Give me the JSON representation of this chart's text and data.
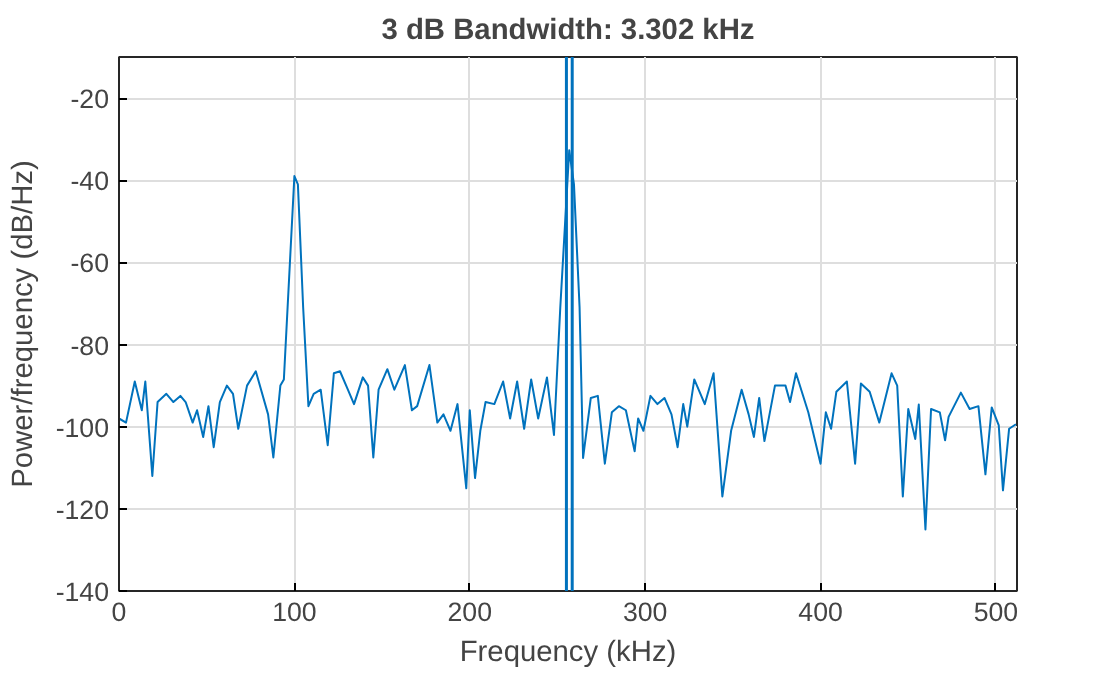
{
  "chart_data": {
    "type": "line",
    "title": "3 dB Bandwidth: 3.302 kHz",
    "xlabel": "Frequency (kHz)",
    "ylabel": "Power/frequency (dB/Hz)",
    "xlim": [
      0,
      512
    ],
    "ylim": [
      -140,
      -10
    ],
    "xticks": [
      0,
      100,
      200,
      300,
      400,
      500
    ],
    "yticks": [
      -140,
      -120,
      -100,
      -80,
      -60,
      -40,
      -20
    ],
    "grid": true,
    "line_style": "solid",
    "marker": "none",
    "series": [
      {
        "color": "#0072bd",
        "x": [
          0,
          4,
          9,
          13,
          15,
          19,
          22,
          27,
          31,
          35,
          38,
          42,
          44.5,
          48,
          51,
          54,
          57.5,
          61.5,
          65,
          68,
          73,
          78,
          85,
          88,
          92,
          94,
          100,
          102,
          105,
          108,
          111,
          115,
          119,
          122.5,
          126,
          130.5,
          134,
          139,
          142,
          145,
          148,
          153,
          157,
          163,
          167,
          170,
          177,
          181.5,
          185,
          189,
          193,
          198,
          200,
          203,
          206,
          209,
          214,
          219,
          223,
          227,
          231,
          235,
          239,
          244,
          248,
          251.6,
          256.7,
          259.4,
          262.6,
          264.6,
          269,
          273,
          277,
          281,
          285,
          289,
          294,
          296,
          299,
          303,
          307,
          311,
          315,
          318.5,
          321.7,
          324,
          328,
          334,
          339,
          344,
          349,
          355,
          359,
          362,
          365,
          368,
          374,
          380,
          382.6,
          386,
          393,
          400,
          403,
          406,
          409,
          415,
          419.7,
          423,
          428,
          433.5,
          440.5,
          443.7,
          446.9,
          450,
          454,
          456,
          459.8,
          463,
          468,
          471,
          473,
          480,
          485,
          490,
          494,
          497.6,
          501.6,
          504,
          507.5,
          511.4
        ],
        "values": [
          -98,
          -99,
          -89,
          -96,
          -89,
          -112,
          -94,
          -92,
          -94,
          -92.5,
          -94,
          -99,
          -96,
          -102.5,
          -95,
          -105,
          -94,
          -90,
          -92,
          -100.5,
          -90,
          -86.5,
          -97,
          -107.5,
          -90,
          -88.5,
          -39,
          -41,
          -71,
          -95,
          -92,
          -91,
          -104.5,
          -87,
          -86.5,
          -91,
          -94.5,
          -88,
          -90,
          -107.5,
          -91,
          -86,
          -91,
          -85,
          -96,
          -95,
          -85,
          -99,
          -97,
          -101,
          -94.5,
          -115,
          -96,
          -112.5,
          -101,
          -94,
          -94.5,
          -89,
          -98,
          -89,
          -100.5,
          -88.5,
          -98,
          -88,
          -102,
          -71,
          -32.7,
          -41,
          -71,
          -107.6,
          -93,
          -92.5,
          -109,
          -96.5,
          -95,
          -96,
          -106,
          -98,
          -101,
          -92.5,
          -94.5,
          -93,
          -97,
          -105,
          -94.5,
          -100,
          -88.5,
          -94.5,
          -87,
          -117,
          -101,
          -91,
          -97,
          -102.5,
          -93,
          -103.5,
          -90,
          -90,
          -94,
          -87,
          -96.5,
          -109,
          -96.5,
          -100.5,
          -91.5,
          -89,
          -109,
          -89.5,
          -91.5,
          -99,
          -87,
          -90,
          -117,
          -95.7,
          -103,
          -94.6,
          -125,
          -95.7,
          -96.5,
          -103.3,
          -97.6,
          -91.7,
          -95.7,
          -95,
          -111.6,
          -95.3,
          -99.7,
          -115.5,
          -100.5,
          -99.4
        ]
      }
    ],
    "ref_lines": [
      {
        "axis": "x",
        "value": 255.1,
        "color": "#0072bd",
        "line_style": "solid"
      },
      {
        "axis": "x",
        "value": 258.4,
        "color": "#0072bd",
        "line_style": "solid"
      }
    ]
  }
}
